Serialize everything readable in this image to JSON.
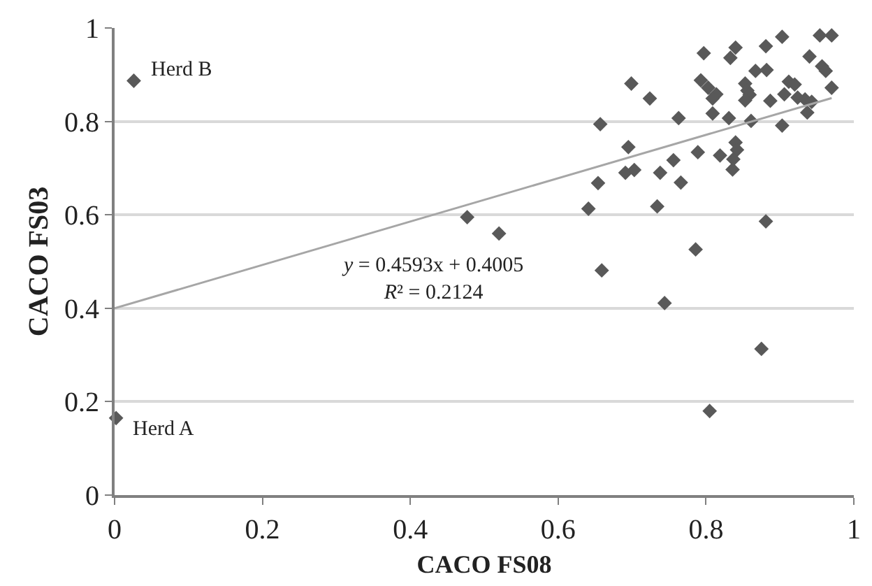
{
  "chart_data": {
    "type": "scatter",
    "xlabel": "CACO FS08",
    "ylabel": "CACO FS03",
    "xlim": [
      0,
      1
    ],
    "ylim": [
      0,
      1
    ],
    "xticks": [
      0,
      0.2,
      0.4,
      0.6,
      0.8,
      1
    ],
    "yticks": [
      0,
      0.2,
      0.4,
      0.6,
      0.8,
      1
    ],
    "grid": "y",
    "legend": false,
    "marker": "diamond",
    "annotations": [
      {
        "text": "Herd B",
        "x": 0.026,
        "y": 0.887
      },
      {
        "text": "Herd A",
        "x": 0.002,
        "y": 0.165
      },
      "y = 0.4593x + 0.4005\nR² = 0.2124"
    ],
    "series": [
      {
        "color": "#595959",
        "x": [
          0.026,
          0.002,
          0.797,
          0.84,
          0.833,
          0.881,
          0.903,
          0.954,
          0.97,
          0.94,
          0.957,
          0.962,
          0.867,
          0.882,
          0.699,
          0.793,
          0.803,
          0.814,
          0.809,
          0.853,
          0.856,
          0.859,
          0.853,
          0.912,
          0.92,
          0.906,
          0.924,
          0.934,
          0.943,
          0.97,
          0.887,
          0.724,
          0.763,
          0.809,
          0.831,
          0.861,
          0.937,
          0.903,
          0.657,
          0.695,
          0.84,
          0.842,
          0.837,
          0.836,
          0.789,
          0.819,
          0.756,
          0.738,
          0.766,
          0.691,
          0.703,
          0.654,
          0.641,
          0.734,
          0.477,
          0.52,
          0.881,
          0.786,
          0.659,
          0.744,
          0.875,
          0.805
        ],
        "values": [
          0.887,
          0.165,
          0.946,
          0.958,
          0.936,
          0.961,
          0.981,
          0.984,
          0.984,
          0.939,
          0.918,
          0.908,
          0.908,
          0.91,
          0.881,
          0.888,
          0.872,
          0.858,
          0.849,
          0.881,
          0.866,
          0.857,
          0.845,
          0.885,
          0.879,
          0.858,
          0.851,
          0.847,
          0.842,
          0.872,
          0.844,
          0.849,
          0.807,
          0.817,
          0.807,
          0.801,
          0.819,
          0.791,
          0.794,
          0.745,
          0.755,
          0.739,
          0.719,
          0.697,
          0.734,
          0.727,
          0.717,
          0.69,
          0.669,
          0.69,
          0.696,
          0.668,
          0.613,
          0.618,
          0.595,
          0.56,
          0.586,
          0.526,
          0.481,
          0.411,
          0.313,
          0.18
        ]
      },
      {
        "type": "line",
        "marker": "none",
        "color": "#a6a6a6",
        "x": [
          0,
          0.97
        ],
        "values": [
          0.4,
          0.85
        ]
      }
    ]
  }
}
